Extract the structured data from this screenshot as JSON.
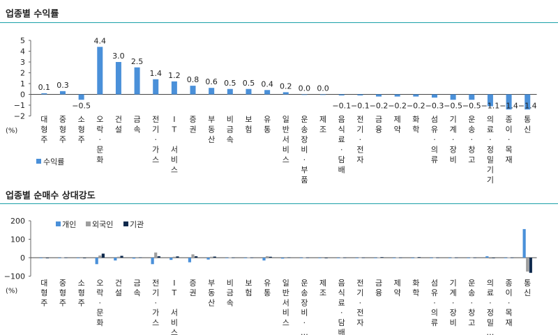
{
  "chart_data": [
    {
      "type": "bar",
      "title": "업종별 수익률",
      "ylabel": "(%)",
      "ylim": [
        -2,
        5
      ],
      "yticks": [
        -2,
        -1,
        0,
        1,
        2,
        3,
        4,
        5
      ],
      "grid": false,
      "legend_position": "bottom-left",
      "categories": [
        "대형주",
        "중형주",
        "소형주",
        "오락·문화",
        "건설",
        "금속",
        "전기·가스",
        "IT 서비스",
        "증권",
        "부동산",
        "비금속",
        "보험",
        "유통",
        "일반서비스",
        "운송장비·부품",
        "제조",
        "음식료·담배",
        "전기·전자",
        "금융",
        "제약",
        "화학",
        "섬유·의류",
        "기계·장비",
        "운송·창고",
        "의료·정밀기기",
        "종이·목재",
        "통신"
      ],
      "series": [
        {
          "name": "수익률",
          "color": "#4a90d9",
          "values": [
            0.1,
            0.3,
            -0.5,
            4.4,
            3.0,
            2.5,
            1.4,
            1.2,
            0.8,
            0.6,
            0.5,
            0.5,
            0.4,
            0.2,
            0.0,
            0.0,
            -0.1,
            -0.1,
            -0.2,
            -0.2,
            -0.2,
            -0.3,
            -0.5,
            -0.5,
            -1.1,
            -1.4,
            -1.4
          ]
        }
      ],
      "value_labels": [
        "0.1",
        "0.3",
        "−0.5",
        "4.4",
        "3.0",
        "2.5",
        "1.4",
        "1.2",
        "0.8",
        "0.6",
        "0.5",
        "0.5",
        "0.4",
        "0.2",
        "0.0",
        "0.0",
        "−0.1",
        "−0.1",
        "−0.2",
        "−0.2",
        "−0.2",
        "−0.3",
        "−0.5",
        "−0.5",
        "−1.1",
        "−1.4",
        "−1.4"
      ]
    },
    {
      "type": "bar",
      "title": "업종별 순매수 상대강도",
      "ylabel": "(%)",
      "ylim": [
        -100,
        200
      ],
      "yticks": [
        -100,
        0,
        100,
        200
      ],
      "grid": false,
      "legend_position": "top-left",
      "categories": [
        "대형주",
        "중형주",
        "소형주",
        "오락·문화",
        "건설",
        "금속",
        "전기·가스",
        "IT 서비스",
        "증권",
        "부동산",
        "비금속",
        "보험",
        "유통",
        "일반서비스",
        "운송장비·…",
        "제조",
        "음식료·담배",
        "전기·전자",
        "금융",
        "제약",
        "화학",
        "섬유·의류",
        "기계·장비",
        "운송·창고",
        "의료·정밀…",
        "종이·목재",
        "통신"
      ],
      "series": [
        {
          "name": "개인",
          "color": "#4a90d9",
          "values": [
            0,
            -3,
            0,
            -35,
            -15,
            -5,
            -35,
            -12,
            -25,
            -10,
            -3,
            -3,
            -15,
            -5,
            -3,
            0,
            -2,
            -2,
            -3,
            -2,
            -3,
            -2,
            -3,
            -2,
            8,
            -3,
            155
          ]
        },
        {
          "name": "외국인",
          "color": "#9e9e9e",
          "values": [
            0,
            2,
            0,
            12,
            5,
            3,
            28,
            5,
            18,
            5,
            2,
            2,
            8,
            3,
            2,
            0,
            2,
            1,
            2,
            2,
            2,
            1,
            2,
            1,
            -5,
            2,
            -75
          ]
        },
        {
          "name": "기관",
          "color": "#0f2a4d",
          "values": [
            0,
            1,
            0,
            22,
            10,
            2,
            8,
            7,
            8,
            6,
            1,
            1,
            5,
            2,
            1,
            0,
            1,
            1,
            3,
            1,
            3,
            1,
            1,
            1,
            -3,
            1,
            -82
          ]
        }
      ]
    }
  ]
}
